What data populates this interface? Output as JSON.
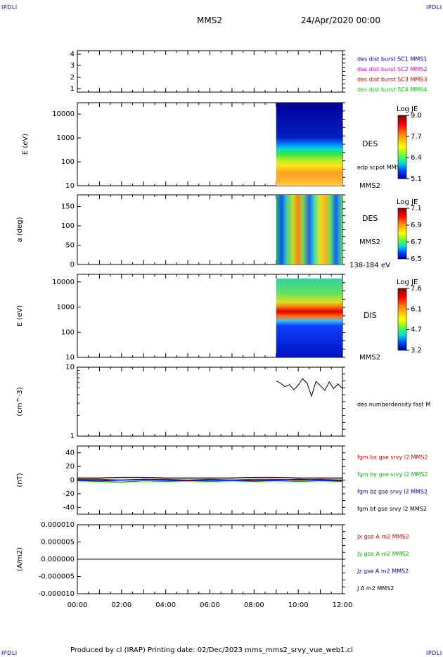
{
  "header": {
    "corner_label": "IPDLI",
    "spacecraft": "MMS2",
    "datetime": "24/Apr/2020 00:00"
  },
  "footer": {
    "text": "Produced by cl (IRAP)   Printing date: 02/Dec/2023   mms_mms2_srvy_vue_web1.cl"
  },
  "chart_data": [
    {
      "type": "table",
      "panel": "availability",
      "yticks": [
        "4",
        "3",
        "2",
        "1"
      ],
      "legend": [
        {
          "name": "des dist burst SC1 MMS1",
          "color": "#0000dd"
        },
        {
          "name": "des dist burst SC2 MMS2",
          "color": "#dd00dd"
        },
        {
          "name": "des dist burst SC3 MMS3",
          "color": "#dd0000"
        },
        {
          "name": "des dist burst SC4 MMS4",
          "color": "#00cc00"
        }
      ]
    },
    {
      "type": "heatmap",
      "panel": "des-energy-spectrogram",
      "ylabel": "E (eV)",
      "yscale": "log",
      "ylim": [
        10,
        30000
      ],
      "yticks": [
        "10000",
        "1000",
        "100",
        "10"
      ],
      "data_start_hour": 9.0,
      "label": "DES",
      "sublabel": "edp scpot MMS2",
      "bottom_label": "MMS2",
      "colorbar": {
        "title": "Log JE",
        "ticks": [
          "9.0",
          "7.7",
          "6.4",
          "5.1"
        ],
        "min": 5.1,
        "max": 9.0
      }
    },
    {
      "type": "heatmap",
      "panel": "des-pitch-angle",
      "ylabel": "a (deg)",
      "ylim": [
        0,
        180
      ],
      "yticks": [
        "150",
        "100",
        "50",
        "0"
      ],
      "data_start_hour": 9.0,
      "label": "DES",
      "sublabel": "MMS2",
      "bottom_label": "138-184 eV",
      "colorbar": {
        "title": "Log JE",
        "ticks": [
          "7.1",
          "6.9",
          "6.7",
          "6.5"
        ],
        "min": 6.5,
        "max": 7.1
      }
    },
    {
      "type": "heatmap",
      "panel": "dis-energy-spectrogram",
      "ylabel": "E (eV)",
      "yscale": "log",
      "ylim": [
        10,
        20000
      ],
      "yticks": [
        "10000",
        "1000",
        "100",
        "10"
      ],
      "data_start_hour": 9.0,
      "label": "DIS",
      "bottom_label": "MMS2",
      "colorbar": {
        "title": "Log JE",
        "ticks": [
          "7.6",
          "6.1",
          "4.7",
          "3.2"
        ],
        "min": 3.2,
        "max": 7.6
      }
    },
    {
      "type": "line",
      "panel": "des-density",
      "ylabel": "(cm^-3)",
      "yscale": "log",
      "ylim": [
        1,
        10
      ],
      "yticks": [
        "10",
        "1"
      ],
      "legend": [
        {
          "name": "des numberdensity fast M",
          "color": "#000000"
        }
      ],
      "series": [
        {
          "name": "des numberdensity fast M",
          "x": [
            9.0,
            9.2,
            9.4,
            9.6,
            9.8,
            10.0,
            10.2,
            10.4,
            10.6,
            10.8,
            11.0,
            11.2,
            11.4,
            11.6,
            11.8,
            12.0
          ],
          "y": [
            6.3,
            5.9,
            5.2,
            5.6,
            4.7,
            5.5,
            6.8,
            5.9,
            3.8,
            6.2,
            5.4,
            4.6,
            6.1,
            4.9,
            5.7,
            4.9
          ]
        }
      ]
    },
    {
      "type": "line",
      "panel": "fgm-field",
      "ylabel": "(nT)",
      "ylim": [
        -50,
        50
      ],
      "yticks": [
        "40",
        "20",
        "0",
        "-20",
        "-40"
      ],
      "legend": [
        {
          "name": "fgm bx gse srvy l2 MMS2",
          "color": "#dd0000"
        },
        {
          "name": "fgm by gse srvy l2 MMS2",
          "color": "#00bb00"
        },
        {
          "name": "fgm bz gse srvy l2 MMS2",
          "color": "#0000dd"
        },
        {
          "name": "fgm bt gse srvy l2 MMS2",
          "color": "#000000"
        }
      ],
      "x": [
        0,
        1,
        2,
        3,
        4,
        5,
        6,
        7,
        8,
        9,
        10,
        11,
        12
      ],
      "series": [
        {
          "name": "fgm bx gse srvy l2 MMS2",
          "values": [
            1,
            1,
            0,
            1,
            1,
            0,
            1,
            0,
            1,
            1,
            0,
            1,
            0
          ]
        },
        {
          "name": "fgm by gse srvy l2 MMS2",
          "values": [
            -1,
            -2,
            -3,
            -1,
            -2,
            -1,
            -2,
            -1,
            -2,
            -1,
            -2,
            -1,
            -2
          ]
        },
        {
          "name": "fgm bz gse srvy l2 MMS2",
          "values": [
            0,
            -1,
            0,
            1,
            0,
            -1,
            0,
            0,
            -1,
            0,
            1,
            0,
            -1
          ]
        },
        {
          "name": "fgm bt gse srvy l2 MMS2",
          "values": [
            3,
            3,
            4,
            4,
            3,
            3,
            3,
            3,
            4,
            4,
            3,
            3,
            3
          ]
        }
      ]
    },
    {
      "type": "line",
      "panel": "current-density",
      "ylabel": "(A/m2)",
      "ylim": [
        -1e-05,
        1e-05
      ],
      "yticks": [
        "0.000010",
        "0.000005",
        "0.000000",
        "-0.000005",
        "-0.000010"
      ],
      "legend": [
        {
          "name": "Jx gse A m2 MMS2",
          "color": "#dd0000"
        },
        {
          "name": "Jy gse A m2 MMS2",
          "color": "#00bb00"
        },
        {
          "name": "Jz gse A m2 MMS2",
          "color": "#0000dd"
        },
        {
          "name": "J A m2 MMS2",
          "color": "#000000"
        }
      ],
      "x": [
        0,
        12
      ],
      "series": [
        {
          "name": "J A m2 MMS2",
          "values": [
            0,
            0
          ]
        }
      ]
    }
  ],
  "x_axis": {
    "ticks": [
      "00:00",
      "02:00",
      "04:00",
      "06:00",
      "08:00",
      "10:00",
      "12:00"
    ],
    "range_hours": [
      0,
      12
    ]
  }
}
